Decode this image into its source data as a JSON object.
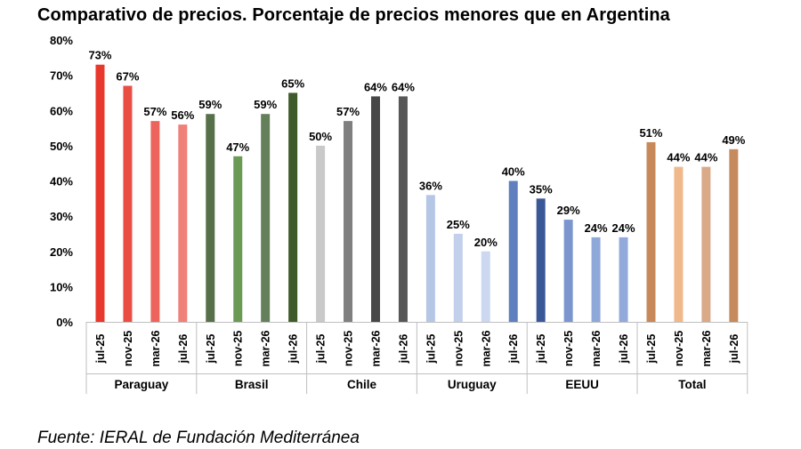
{
  "chart_data": {
    "type": "bar",
    "title": "Comparativo de precios. Porcentaje de precios menores que en Argentina",
    "ylim": [
      0,
      80
    ],
    "yticks": [
      "0%",
      "10%",
      "20%",
      "30%",
      "40%",
      "50%",
      "60%",
      "70%",
      "80%"
    ],
    "grid": false,
    "periods": [
      "jul-25",
      "nov-25",
      "mar-26",
      "jul-26"
    ],
    "groups": [
      {
        "name": "Paraguay",
        "values": [
          73,
          67,
          57,
          56
        ],
        "labels": [
          "73%",
          "67%",
          "57%",
          "56%"
        ],
        "colors": [
          "#e8382e",
          "#ea4e43",
          "#ec645c",
          "#ef8179"
        ]
      },
      {
        "name": "Brasil",
        "values": [
          59,
          47,
          59,
          65
        ],
        "labels": [
          "59%",
          "47%",
          "59%",
          "65%"
        ],
        "colors": [
          "#56704a",
          "#6b9a55",
          "#64805a",
          "#3f5a2b"
        ]
      },
      {
        "name": "Chile",
        "values": [
          50,
          57,
          64,
          64
        ],
        "labels": [
          "50%",
          "57%",
          "64%",
          "64%"
        ],
        "colors": [
          "#c9c9c9",
          "#7f7f7f",
          "#474747",
          "#575757"
        ]
      },
      {
        "name": "Uruguay",
        "values": [
          36,
          25,
          20,
          40
        ],
        "labels": [
          "36%",
          "25%",
          "20%",
          "40%"
        ],
        "colors": [
          "#b6c7e6",
          "#c2d0eb",
          "#ccd8ef",
          "#5f7fbf"
        ]
      },
      {
        "name": "EEUU",
        "values": [
          35,
          29,
          24,
          24
        ],
        "labels": [
          "35%",
          "29%",
          "24%",
          "24%"
        ],
        "colors": [
          "#3a5898",
          "#7b96cf",
          "#8fa8da",
          "#91aadb"
        ]
      },
      {
        "name": "Total",
        "values": [
          51,
          44,
          44,
          49
        ],
        "labels": [
          "51%",
          "44%",
          "44%",
          "49%"
        ],
        "colors": [
          "#c8895a",
          "#f0b98c",
          "#d9a988",
          "#c68b5d"
        ]
      }
    ]
  },
  "source": "Fuente: IERAL de Fundación Mediterránea"
}
